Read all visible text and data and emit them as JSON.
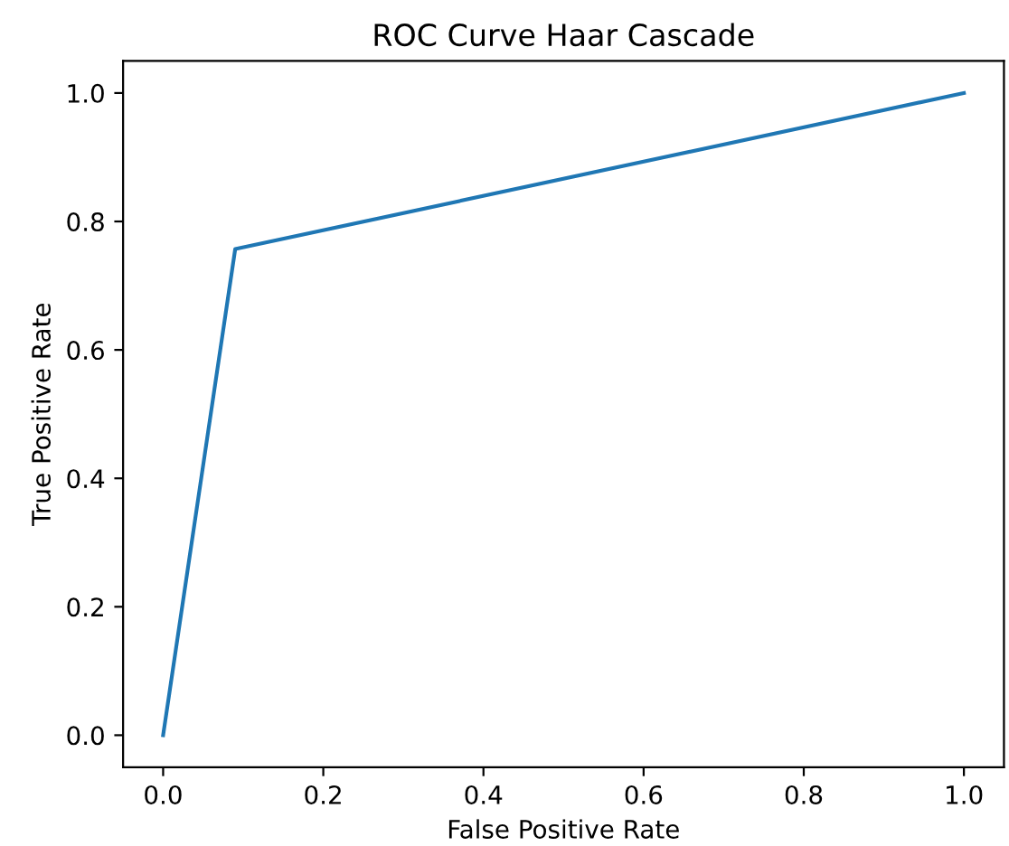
{
  "chart_data": {
    "type": "line",
    "title": "ROC Curve Haar Cascade",
    "xlabel": "False Positive Rate",
    "ylabel": "True Positive Rate",
    "x": [
      0.0,
      0.09,
      1.0
    ],
    "series": [
      {
        "color": "#1f77b4",
        "values": [
          0.0,
          0.757,
          1.0
        ]
      }
    ],
    "xlim": [
      -0.05,
      1.05
    ],
    "ylim": [
      -0.05,
      1.05
    ],
    "xticks": [
      {
        "value": 0,
        "label": "0.0"
      },
      0.2,
      0.4,
      0.6,
      0.8,
      {
        "value": 1,
        "label": "1.0"
      }
    ],
    "yticks": [
      {
        "value": 0,
        "label": "0.0"
      },
      0.2,
      0.4,
      0.6,
      0.8,
      {
        "value": 1,
        "label": "1.0"
      }
    ],
    "grid": false,
    "legend": false
  }
}
